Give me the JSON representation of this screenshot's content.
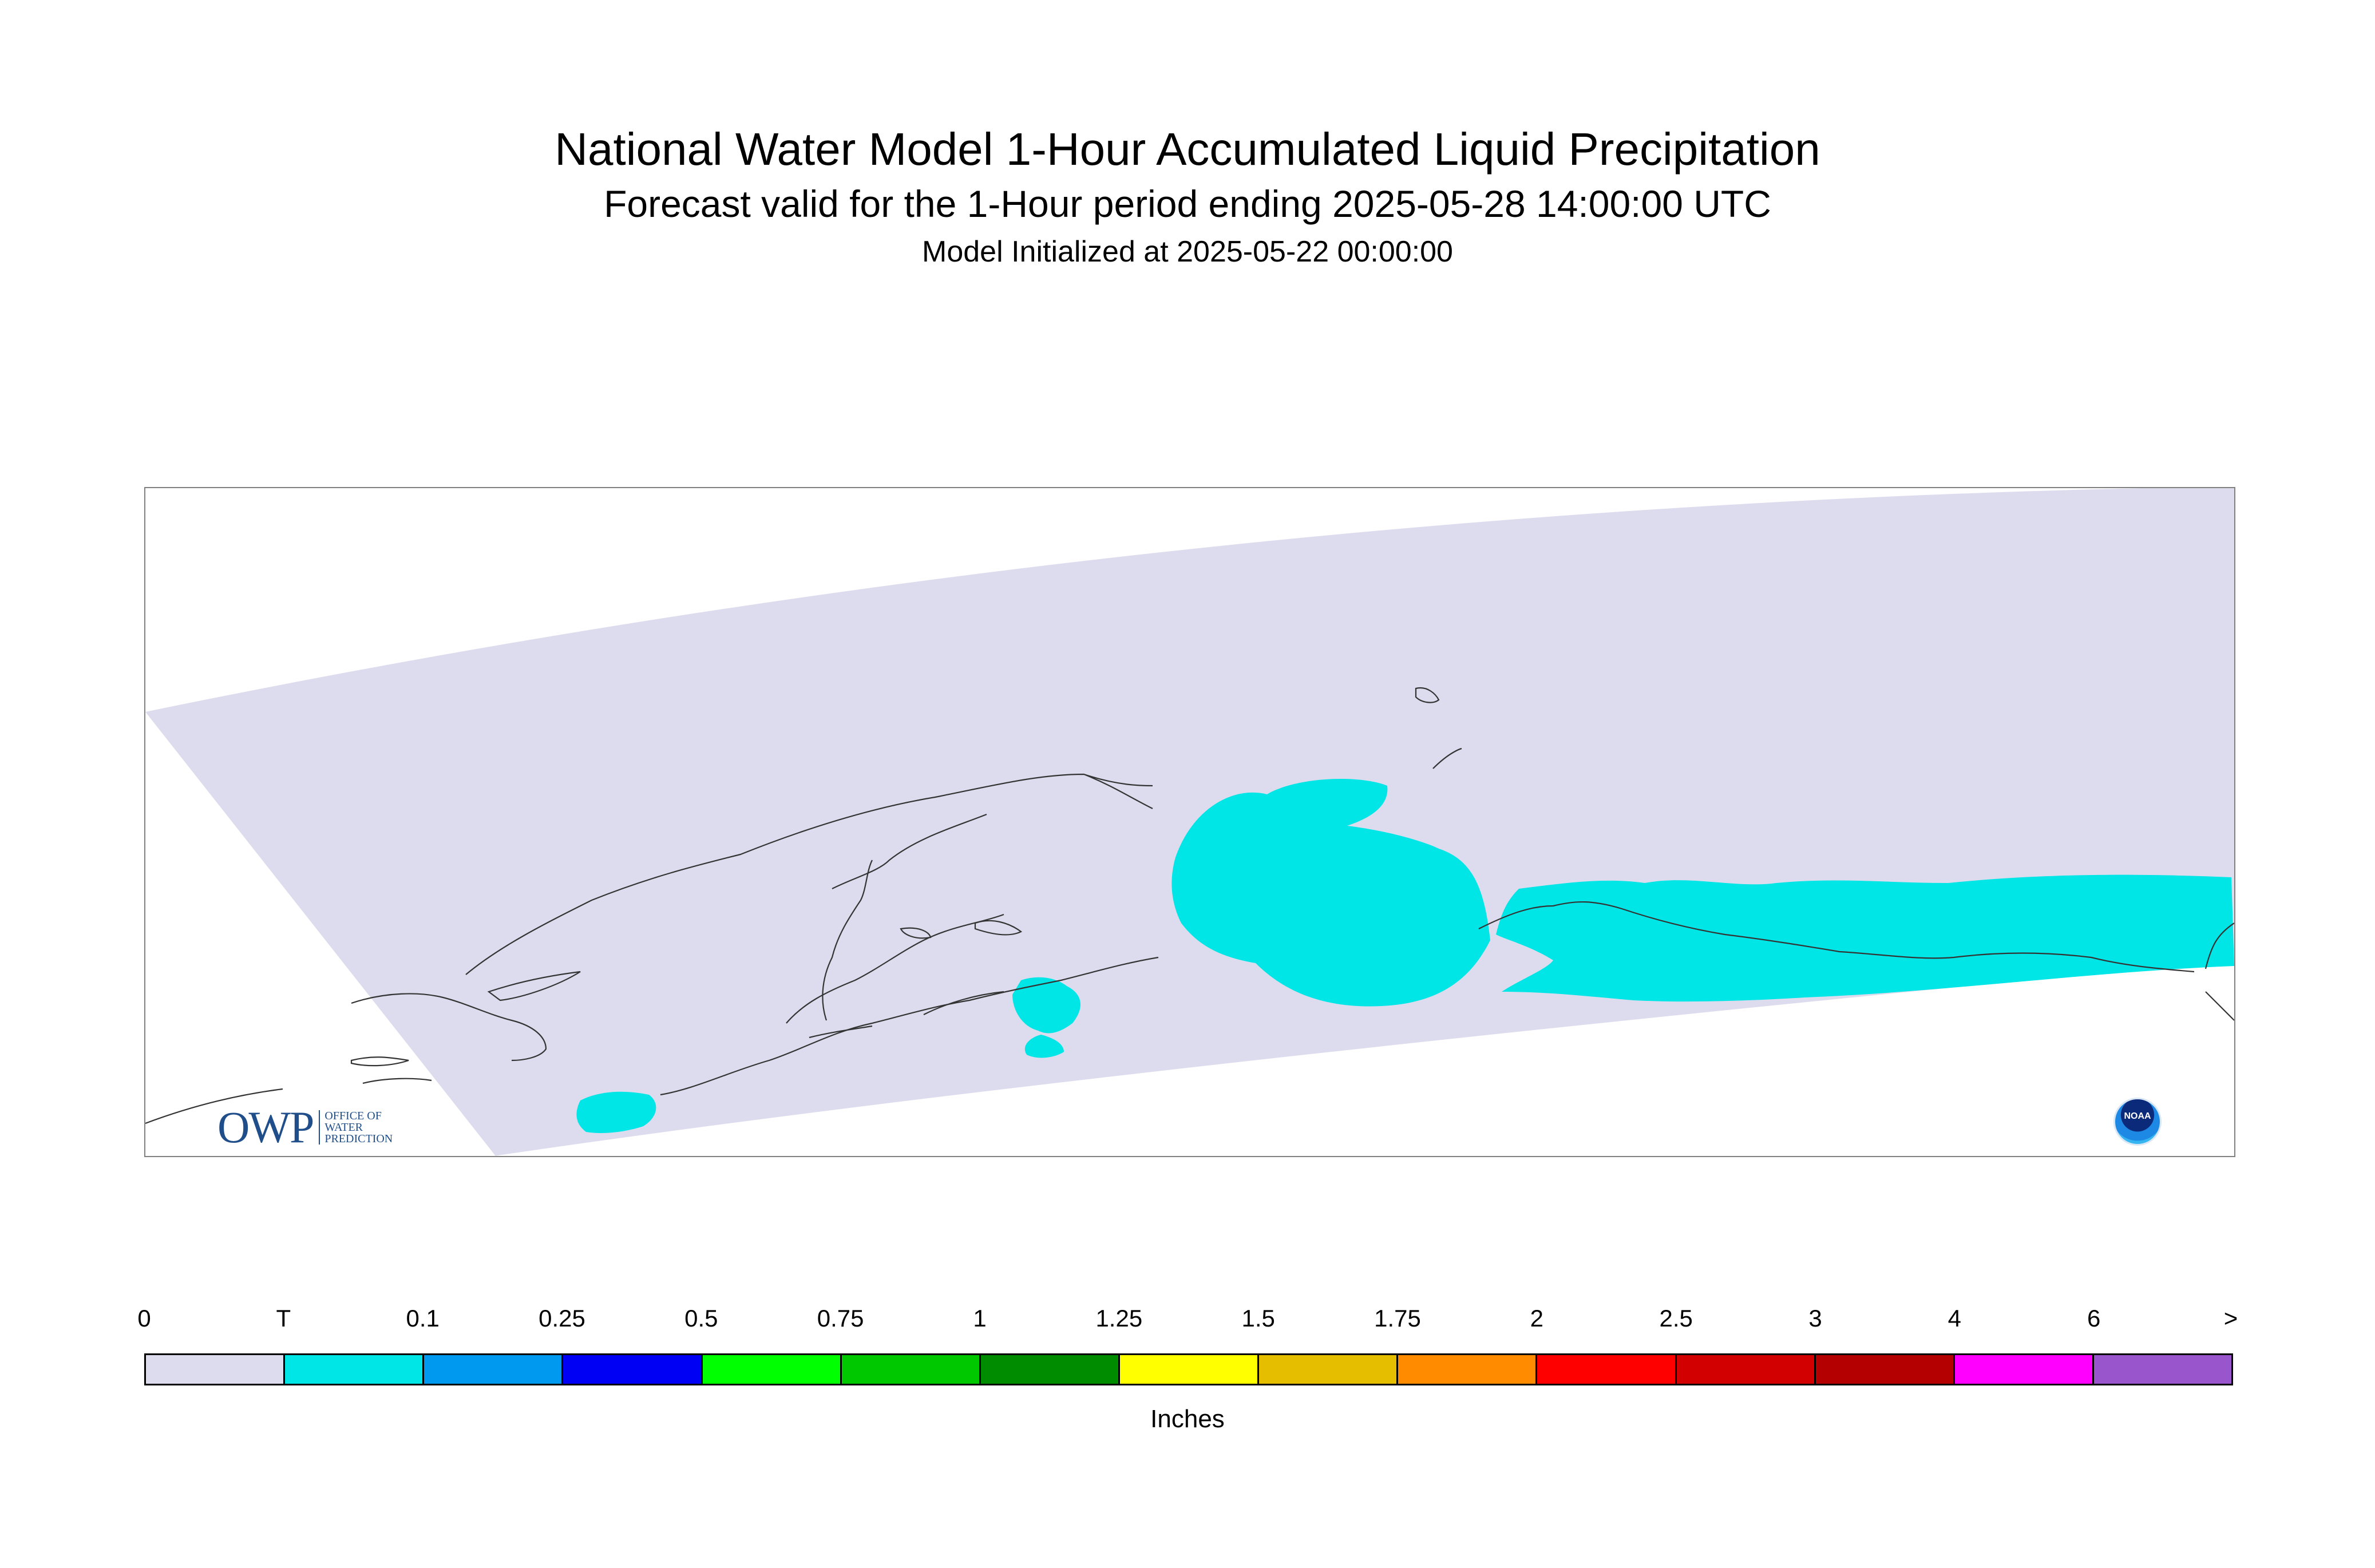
{
  "header": {
    "title": "National Water Model 1-Hour Accumulated Liquid Precipitation",
    "subtitle": "Forecast valid for the 1-Hour period ending 2025-05-28 14:00:00 UTC",
    "init": "Model Initialized at 2025-05-22 00:00:00"
  },
  "map": {
    "domain_color": "#dcdcee",
    "precip_color": "#00e5e5",
    "coastline_color": "#333333"
  },
  "legend": {
    "labels": [
      "0",
      "T",
      "0.1",
      "0.25",
      "0.5",
      "0.75",
      "1",
      "1.25",
      "1.5",
      "1.75",
      "2",
      "2.5",
      "3",
      "4",
      "6",
      ">"
    ],
    "colors": [
      "#dcdcee",
      "#00e5e5",
      "#0099f0",
      "#0000f5",
      "#00ff00",
      "#00c800",
      "#008c00",
      "#ffff00",
      "#e6be00",
      "#ff8c00",
      "#ff0000",
      "#d20000",
      "#b40000",
      "#ff00ff",
      "#9955cc"
    ],
    "units": "Inches"
  },
  "logos": {
    "owp_big": "OWP",
    "owp_line1": "OFFICE OF",
    "owp_line2": "WATER",
    "owp_line3": "PREDICTION",
    "noaa": "NOAA"
  }
}
